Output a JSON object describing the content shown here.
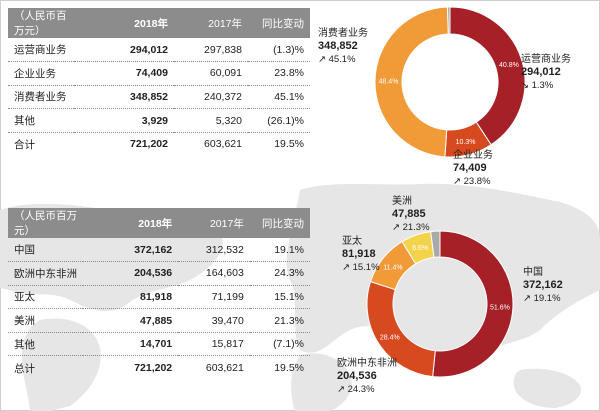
{
  "table_business": {
    "header": [
      "（人民币百万元）",
      "2018年",
      "2017年",
      "同比变动"
    ],
    "rows": [
      [
        "运营商业务",
        "294,012",
        "297,838",
        "(1.3)%"
      ],
      [
        "企业业务",
        "74,409",
        "60,091",
        "23.8%"
      ],
      [
        "消费者业务",
        "348,852",
        "240,372",
        "45.1%"
      ],
      [
        "其他",
        "3,929",
        "5,320",
        "(26.1)%"
      ],
      [
        "合计",
        "721,202",
        "603,621",
        "19.5%"
      ]
    ]
  },
  "table_region": {
    "header": [
      "（人民币百万元）",
      "2018年",
      "2017年",
      "同比变动"
    ],
    "rows": [
      [
        "中国",
        "372,162",
        "312,532",
        "19.1%"
      ],
      [
        "欧洲中东非洲",
        "204,536",
        "164,603",
        "24.3%"
      ],
      [
        "亚太",
        "81,918",
        "71,199",
        "15.1%"
      ],
      [
        "美洲",
        "47,885",
        "39,470",
        "21.3%"
      ],
      [
        "其他",
        "14,701",
        "15,817",
        "(7.1)%"
      ],
      [
        "总计",
        "721,202",
        "603,621",
        "19.5%"
      ]
    ]
  },
  "chart_data": [
    {
      "type": "pie",
      "categories": [
        "运营商业务",
        "企业业务",
        "消费者业务",
        "其他"
      ],
      "values": [
        294012,
        74409,
        348852,
        3929
      ],
      "percent_labels": [
        "40.8%",
        "10.3%",
        "48.4%",
        ""
      ],
      "colors": [
        "#a52027",
        "#d74a20",
        "#f19a38",
        "#a9a9a9"
      ],
      "callouts": [
        {
          "name": "运营商业务",
          "value": "294,012",
          "change": "↘ 1.3%"
        },
        {
          "name": "企业业务",
          "value": "74,409",
          "change": "↗ 23.8%"
        },
        {
          "name": "消费者业务",
          "value": "348,852",
          "change": "↗ 45.1%"
        }
      ]
    },
    {
      "type": "pie",
      "categories": [
        "中国",
        "欧洲中东非洲",
        "亚太",
        "美洲",
        "其他"
      ],
      "values": [
        372162,
        204536,
        81918,
        47885,
        14701
      ],
      "percent_labels": [
        "51.6%",
        "28.4%",
        "11.4%",
        "6.6%",
        ""
      ],
      "colors": [
        "#a52027",
        "#d74a20",
        "#f19a38",
        "#f3d24c",
        "#a9a9a9"
      ],
      "callouts": [
        {
          "name": "中国",
          "value": "372,162",
          "change": "↗ 19.1%"
        },
        {
          "name": "欧洲中东非洲",
          "value": "204,536",
          "change": "↗ 24.3%"
        },
        {
          "name": "亚太",
          "value": "81,918",
          "change": "↗ 15.1%"
        },
        {
          "name": "美洲",
          "value": "47,885",
          "change": "↗ 21.3%"
        }
      ]
    }
  ]
}
